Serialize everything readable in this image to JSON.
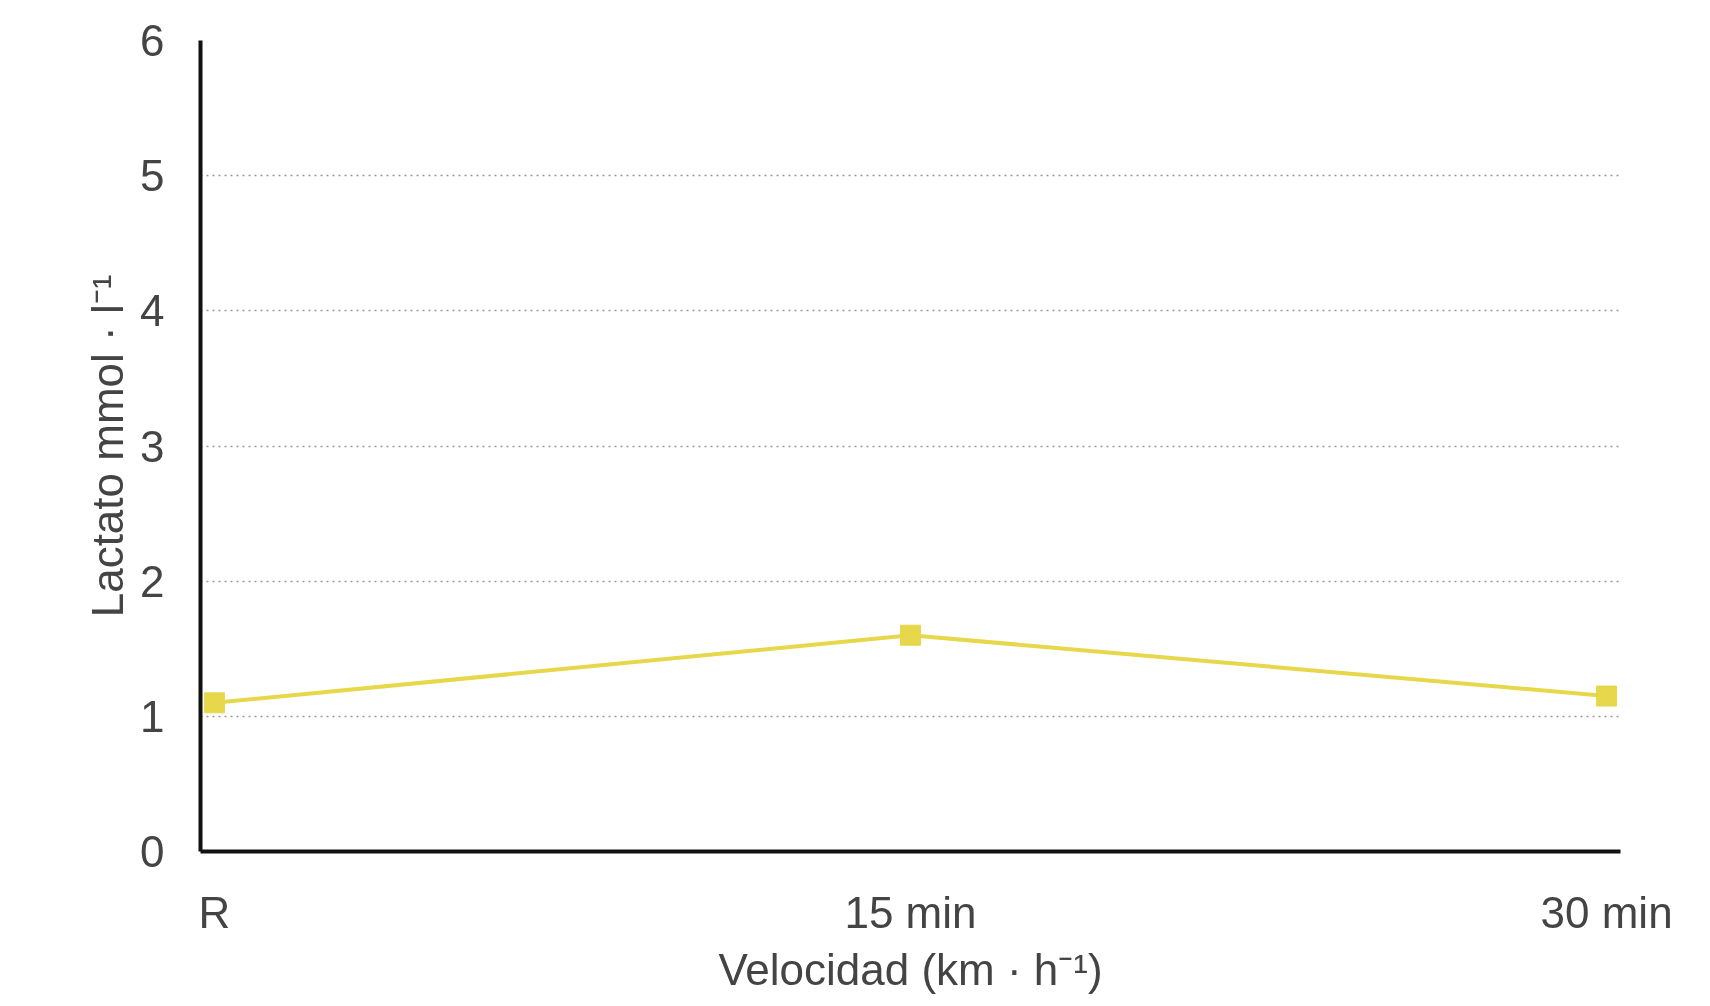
{
  "chart_data": {
    "type": "line",
    "xlabel": "Velocidad (km · h⁻¹)",
    "ylabel": "Lactato mmol · l⁻¹",
    "categories": [
      "R",
      "15 min",
      "30 min"
    ],
    "series": [
      {
        "color": "#e6d84a",
        "values": [
          1.1,
          1.6,
          1.15
        ]
      }
    ],
    "ylim": [
      0,
      6
    ],
    "yticks": [
      0,
      1,
      2,
      3,
      4,
      5,
      6
    ],
    "grid": "y",
    "marker": "square",
    "line_style": "solid"
  }
}
